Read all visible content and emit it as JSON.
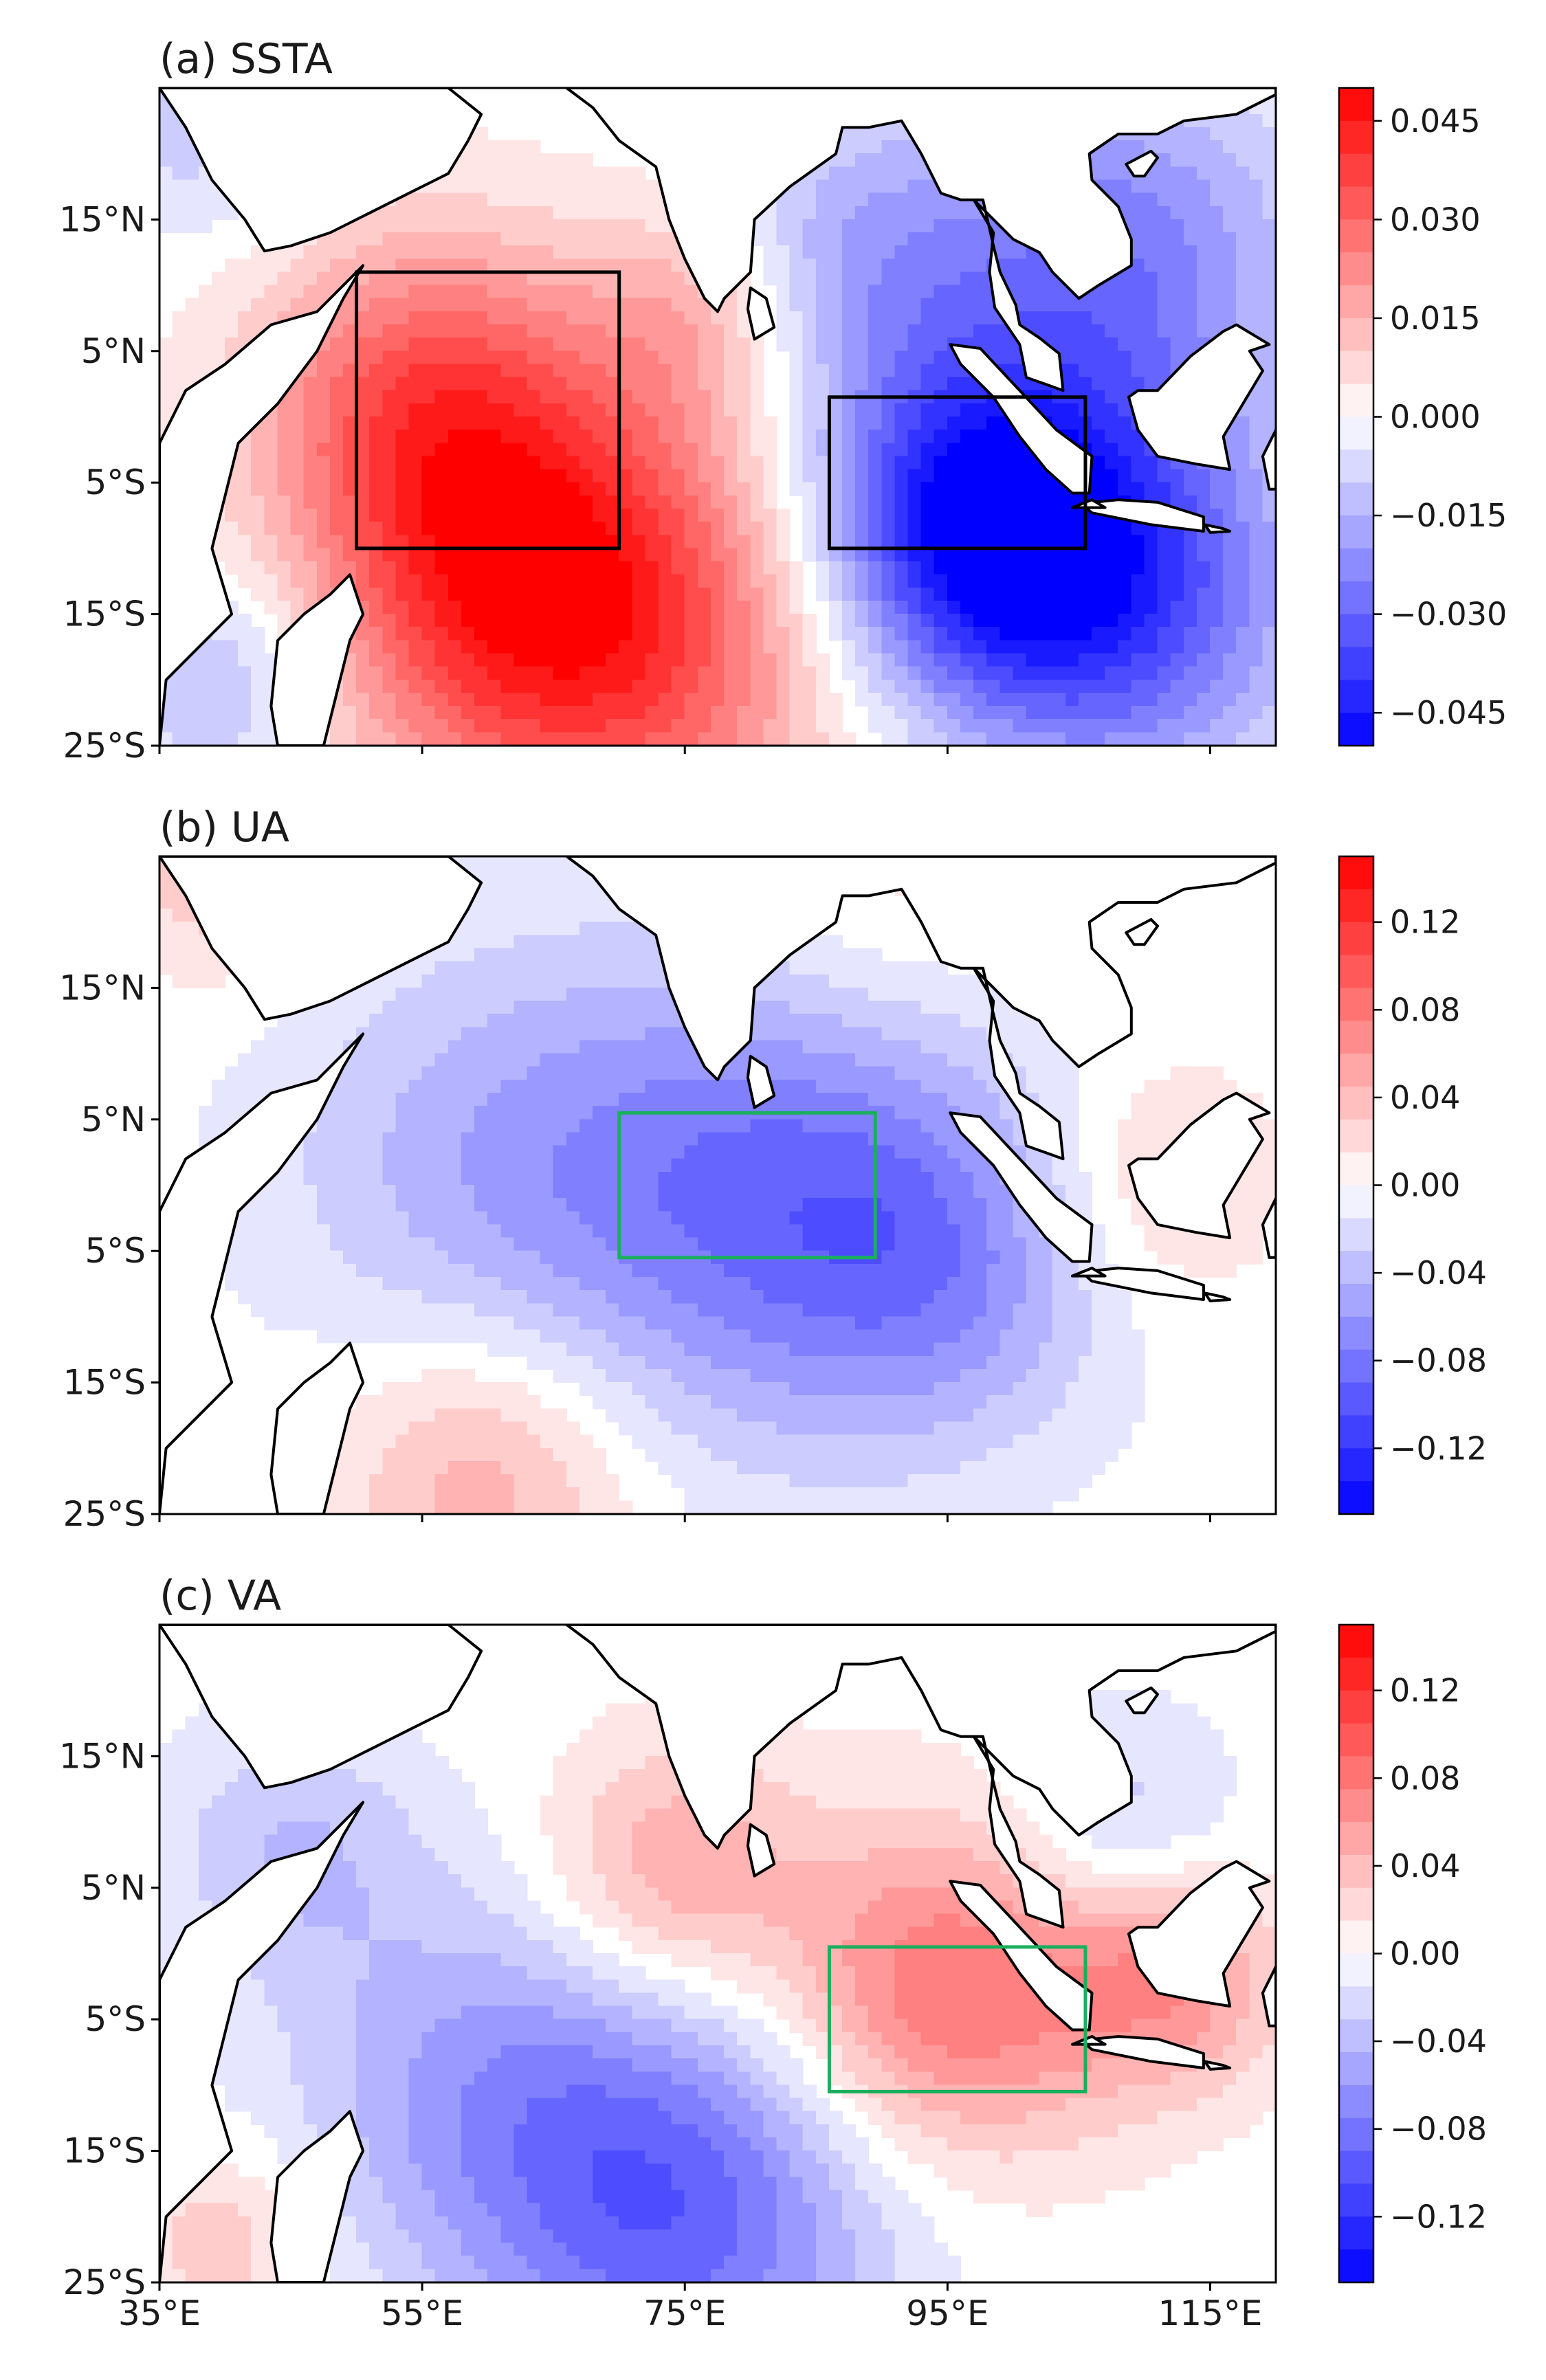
{
  "panels": [
    {
      "title": "(a) SSTA",
      "colorbar": {
        "min": -0.05,
        "max": 0.05,
        "ticks": [
          "0.045",
          "0.030",
          "0.015",
          "0.000",
          "−0.015",
          "−0.030",
          "−0.045"
        ],
        "tick_values": [
          0.045,
          0.03,
          0.015,
          0.0,
          -0.015,
          -0.03,
          -0.045
        ]
      },
      "boxes": [
        {
          "name": "western-box",
          "lon": [
            50,
            70
          ],
          "lat": [
            -10,
            11
          ],
          "color": "#000000"
        },
        {
          "name": "eastern-box",
          "lon": [
            86,
            105.5
          ],
          "lat": [
            -10,
            1.5
          ],
          "color": "#000000"
        }
      ],
      "anomalies": [
        {
          "lon": 62,
          "lat": -12,
          "amp": 0.035,
          "r": 11
        },
        {
          "lon": 55,
          "lat": 2,
          "amp": 0.026,
          "r": 9
        },
        {
          "lon": 72,
          "lat": -18,
          "amp": 0.024,
          "r": 12
        },
        {
          "lon": 76,
          "lat": 8,
          "amp": 0.014,
          "r": 6
        },
        {
          "lon": 97,
          "lat": -8,
          "amp": -0.045,
          "r": 9
        },
        {
          "lon": 108,
          "lat": -14,
          "amp": -0.032,
          "r": 10
        },
        {
          "lon": 108,
          "lat": 12,
          "amp": -0.025,
          "r": 10
        },
        {
          "lon": 88,
          "lat": 12,
          "amp": -0.016,
          "r": 8
        },
        {
          "lon": 40,
          "lat": -20,
          "amp": -0.015,
          "r": 6
        },
        {
          "lon": 38,
          "lat": 22,
          "amp": -0.01,
          "r": 6
        }
      ]
    },
    {
      "title": "(b) UA",
      "colorbar": {
        "min": -0.15,
        "max": 0.15,
        "ticks": [
          "0.12",
          "0.08",
          "0.04",
          "0.00",
          "−0.04",
          "−0.08",
          "−0.12"
        ],
        "tick_values": [
          0.12,
          0.08,
          0.04,
          0.0,
          -0.04,
          -0.08,
          -0.12
        ]
      },
      "boxes": [
        {
          "name": "central-box",
          "lon": [
            70,
            89.5
          ],
          "lat": [
            -5.5,
            5.5
          ],
          "color": "#1aaf5d"
        }
      ],
      "anomalies": [
        {
          "lon": 82,
          "lat": -1,
          "amp": -0.075,
          "r": 13
        },
        {
          "lon": 60,
          "lat": 2,
          "amp": -0.04,
          "r": 12
        },
        {
          "lon": 95,
          "lat": -6,
          "amp": -0.045,
          "r": 9
        },
        {
          "lon": 60,
          "lat": -22,
          "amp": 0.05,
          "r": 8
        },
        {
          "lon": 40,
          "lat": 24,
          "amp": 0.035,
          "r": 6
        },
        {
          "lon": 110,
          "lat": 0,
          "amp": 0.03,
          "r": 7
        },
        {
          "lon": 90,
          "lat": 22,
          "amp": 0.02,
          "r": 8
        }
      ]
    },
    {
      "title": "(c) VA",
      "colorbar": {
        "min": -0.15,
        "max": 0.15,
        "ticks": [
          "0.12",
          "0.08",
          "0.04",
          "0.00",
          "−0.04",
          "−0.08",
          "−0.12"
        ],
        "tick_values": [
          0.12,
          0.08,
          0.04,
          0.0,
          -0.04,
          -0.08,
          -0.12
        ]
      },
      "boxes": [
        {
          "name": "sumatra-box",
          "lon": [
            86,
            105.5
          ],
          "lat": [
            -10.5,
            0.5
          ],
          "color": "#1aaf5d"
        }
      ],
      "anomalies": [
        {
          "lon": 95,
          "lat": -3,
          "amp": 0.085,
          "r": 9
        },
        {
          "lon": 112,
          "lat": -2,
          "amp": 0.06,
          "r": 6
        },
        {
          "lon": 74,
          "lat": 6,
          "amp": 0.055,
          "r": 7
        },
        {
          "lon": 75,
          "lat": -20,
          "amp": -0.085,
          "r": 11
        },
        {
          "lon": 60,
          "lat": -10,
          "amp": -0.05,
          "r": 11
        },
        {
          "lon": 45,
          "lat": 8,
          "amp": -0.035,
          "r": 7
        },
        {
          "lon": 108,
          "lat": 10,
          "amp": -0.035,
          "r": 6
        },
        {
          "lon": 40,
          "lat": -22,
          "amp": 0.035,
          "r": 5
        }
      ]
    }
  ],
  "lat_labels": [
    "15°N",
    "5°N",
    "5°S",
    "15°S",
    "25°S"
  ],
  "lat_values": [
    15,
    5,
    -5,
    -15,
    -25
  ],
  "lon_labels": [
    "35°E",
    "55°E",
    "75°E",
    "95°E",
    "115°E"
  ],
  "lon_values": [
    35,
    55,
    75,
    95,
    115
  ],
  "extent": {
    "lon": [
      35,
      120
    ],
    "lat": [
      -25,
      25
    ]
  },
  "colors": {
    "neg": "#0000ff",
    "mid": "#ffffff",
    "pos": "#ff0000",
    "land": "#ffffff",
    "coast": "#000000"
  },
  "land": [
    [
      [
        35,
        25
      ],
      [
        37,
        22
      ],
      [
        39,
        18
      ],
      [
        41.5,
        15
      ],
      [
        43,
        12.6
      ],
      [
        45,
        13
      ],
      [
        48,
        14
      ],
      [
        51,
        15.5
      ],
      [
        54,
        17
      ],
      [
        57,
        18.5
      ],
      [
        58.5,
        21
      ],
      [
        59.5,
        23
      ],
      [
        57,
        25
      ],
      [
        35,
        25
      ]
    ],
    [
      [
        35,
        -25
      ],
      [
        35,
        -2
      ],
      [
        37,
        2
      ],
      [
        40,
        4
      ],
      [
        43.5,
        7
      ],
      [
        47,
        8
      ],
      [
        50.5,
        11.5
      ],
      [
        49,
        9
      ],
      [
        47,
        5
      ],
      [
        44,
        1
      ],
      [
        41,
        -2
      ],
      [
        40,
        -6
      ],
      [
        39,
        -10
      ],
      [
        40.5,
        -15
      ],
      [
        35.5,
        -20
      ],
      [
        35,
        -25
      ]
    ],
    [
      [
        49.5,
        -12
      ],
      [
        50.5,
        -15
      ],
      [
        49.5,
        -17
      ],
      [
        47.5,
        -25
      ],
      [
        44,
        -25
      ],
      [
        43.5,
        -22
      ],
      [
        44,
        -17
      ],
      [
        46,
        -15
      ],
      [
        48,
        -13.5
      ]
    ],
    [
      [
        66,
        25
      ],
      [
        68,
        23.5
      ],
      [
        70,
        21
      ],
      [
        72.8,
        19
      ],
      [
        73.8,
        15
      ],
      [
        75,
        12
      ],
      [
        76.5,
        9
      ],
      [
        77.5,
        8
      ],
      [
        78,
        9
      ],
      [
        80,
        11
      ],
      [
        80.3,
        15
      ],
      [
        83,
        17.5
      ],
      [
        86.5,
        20
      ],
      [
        87,
        22
      ],
      [
        89,
        22
      ],
      [
        91.5,
        22.5
      ],
      [
        93,
        20
      ],
      [
        94.5,
        17
      ],
      [
        96,
        16.5
      ],
      [
        97.7,
        16.5
      ],
      [
        98.5,
        13
      ],
      [
        99,
        11
      ],
      [
        100.2,
        8.5
      ],
      [
        100.5,
        7
      ],
      [
        102,
        6
      ],
      [
        103.5,
        4.8
      ],
      [
        103.8,
        2
      ],
      [
        101,
        3
      ],
      [
        100.5,
        5.5
      ],
      [
        98.6,
        8.3
      ],
      [
        98.2,
        11
      ],
      [
        98.5,
        14
      ],
      [
        97,
        16.5
      ],
      [
        100,
        13.5
      ],
      [
        102,
        12.5
      ],
      [
        103,
        11
      ],
      [
        105,
        9
      ],
      [
        106.5,
        10
      ],
      [
        109,
        11.5
      ],
      [
        109,
        13.5
      ],
      [
        108,
        16
      ],
      [
        106,
        18
      ],
      [
        105.8,
        20
      ],
      [
        108,
        21.5
      ],
      [
        111,
        21.5
      ],
      [
        113,
        22.5
      ],
      [
        117,
        23
      ],
      [
        120,
        24.5
      ],
      [
        120,
        25
      ]
    ],
    [
      [
        79.8,
        8.2
      ],
      [
        80.3,
        5.9
      ],
      [
        81.8,
        6.8
      ],
      [
        81.2,
        9
      ],
      [
        80,
        9.8
      ]
    ],
    [
      [
        95.2,
        5.5
      ],
      [
        97.5,
        5.2
      ],
      [
        100.5,
        2
      ],
      [
        103.3,
        -1
      ],
      [
        106,
        -3
      ],
      [
        105.8,
        -5.8
      ],
      [
        104.5,
        -5.8
      ],
      [
        102.5,
        -4
      ],
      [
        100.5,
        -1.5
      ],
      [
        98.5,
        1.5
      ],
      [
        96,
        4
      ]
    ],
    [
      [
        105.2,
        -6.6
      ],
      [
        108,
        -6.3
      ],
      [
        111,
        -6.5
      ],
      [
        114.5,
        -7.6
      ],
      [
        114.5,
        -8.7
      ],
      [
        110.5,
        -8.2
      ],
      [
        106,
        -7.3
      ]
    ],
    [
      [
        108.8,
        1.5
      ],
      [
        109.5,
        -1
      ],
      [
        111,
        -3
      ],
      [
        114,
        -3.6
      ],
      [
        116.5,
        -4
      ],
      [
        116,
        -1.5
      ],
      [
        117.5,
        1
      ],
      [
        119,
        3.5
      ],
      [
        118,
        5
      ],
      [
        119.5,
        5.5
      ],
      [
        117,
        7
      ],
      [
        116,
        6.5
      ],
      [
        113.5,
        4.6
      ],
      [
        111,
        2
      ],
      [
        109.5,
        2
      ]
    ],
    [
      [
        120,
        -1
      ],
      [
        119,
        -3
      ],
      [
        119.5,
        -5.5
      ],
      [
        120,
        -5.5
      ]
    ],
    [
      [
        108.6,
        19.2
      ],
      [
        110.5,
        20.2
      ],
      [
        111,
        19.7
      ],
      [
        110,
        18.3
      ],
      [
        109.2,
        18.3
      ]
    ],
    [
      [
        104.5,
        -6.9
      ],
      [
        106,
        -6.3
      ],
      [
        107,
        -6.9
      ]
    ],
    [
      [
        114.6,
        -8.2
      ],
      [
        116,
        -8.5
      ],
      [
        116.5,
        -8.7
      ],
      [
        115,
        -8.8
      ]
    ]
  ]
}
